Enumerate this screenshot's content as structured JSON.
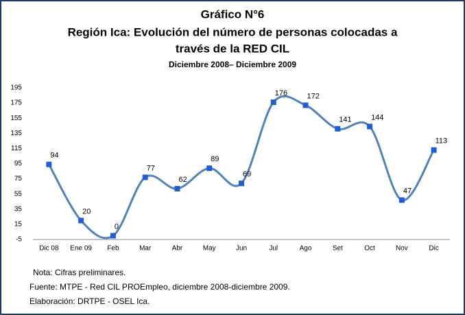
{
  "chart_data": {
    "type": "line",
    "title": [
      "Gráfico N°6",
      "Región Ica: Evolución del número de personas colocadas a",
      "través de la RED CIL"
    ],
    "subtitle": "Diciembre 2008– Diciembre 2009",
    "categories": [
      "Dic 08",
      "Ene 09",
      "Feb",
      "Mar",
      "Abr",
      "May",
      "Jun",
      "Jul",
      "Ago",
      "Set",
      "Oct",
      "Nov",
      "Dic"
    ],
    "values": [
      94,
      20,
      0,
      77,
      62,
      89,
      69,
      176,
      172,
      141,
      144,
      47,
      113
    ],
    "color": "#4f81bd",
    "marker_color": "#1f5fd6",
    "ylim": [
      -5,
      195
    ],
    "yticks": [
      -5,
      15,
      35,
      55,
      75,
      95,
      115,
      135,
      155,
      175,
      195
    ],
    "notes": [
      "Nota: Cifras preliminares.",
      "Fuente: MTPE - Red CIL PROEmpleo, diciembre 2008-diciembre 2009.",
      "Elaboración: DRTPE - OSEL Ica."
    ]
  }
}
